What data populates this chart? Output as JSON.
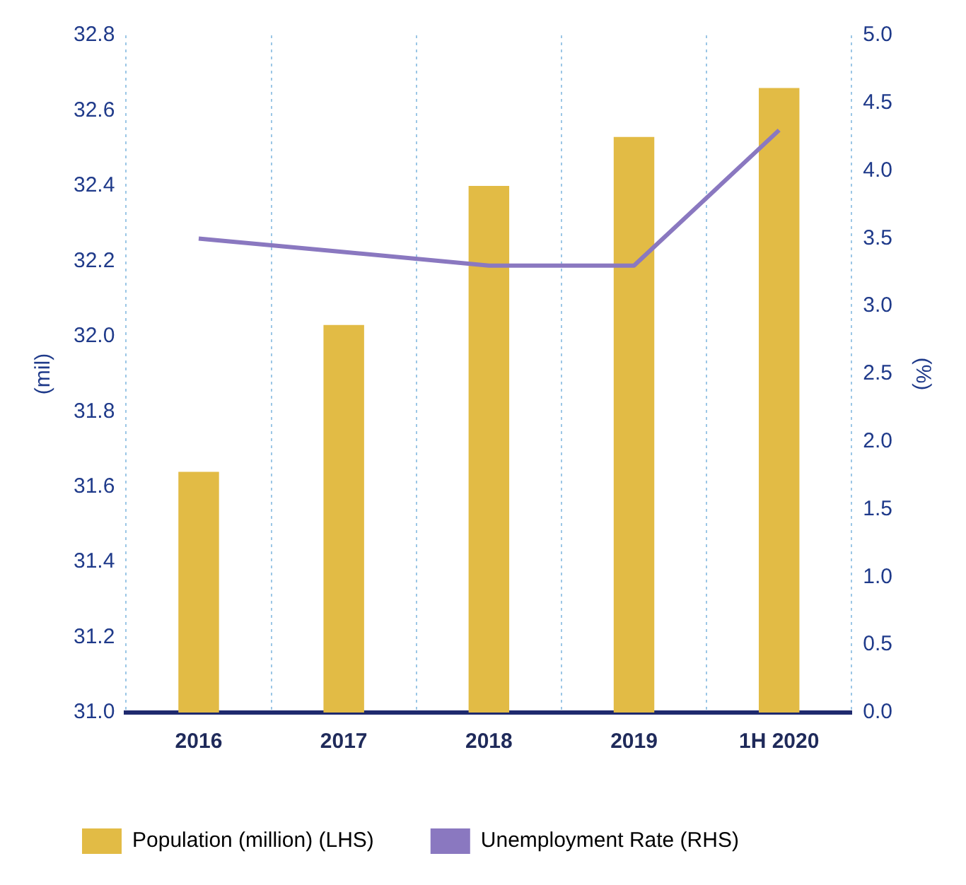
{
  "chart_data": {
    "type": "bar",
    "ylabel": "(mil)",
    "y2label": "(%)",
    "categories": [
      "2016",
      "2017",
      "2018",
      "2019",
      "1H 2020"
    ],
    "series": [
      {
        "name": "Population (million) (LHS)",
        "color": "#e2bb45",
        "values": [
          31.64,
          32.03,
          32.4,
          32.53,
          32.66
        ]
      },
      {
        "name": "Unemployment Rate (RHS)",
        "type": "line",
        "axis": "y2",
        "color": "#8a78c0",
        "values": [
          3.5,
          3.4,
          3.3,
          3.3,
          4.3
        ]
      }
    ],
    "ylim": [
      31.0,
      32.8
    ],
    "yticks": [
      {
        "value": 31,
        "label": "31.0"
      },
      31.2,
      31.4,
      31.6,
      31.8,
      {
        "value": 32,
        "label": "32.0"
      },
      32.2,
      32.4,
      32.6,
      32.8
    ],
    "y2lim": [
      0,
      5
    ],
    "y2ticks": [
      {
        "value": 0,
        "label": "0.0"
      },
      0.5,
      {
        "value": 1,
        "label": "1.0"
      },
      1.5,
      {
        "value": 2,
        "label": "2.0"
      },
      2.5,
      {
        "value": 3,
        "label": "3.0"
      },
      3.5,
      {
        "value": 4,
        "label": "4.0"
      },
      4.5,
      {
        "value": 5,
        "label": "5.0"
      }
    ],
    "grid": "x",
    "legend": "bottom",
    "marker": "none"
  }
}
